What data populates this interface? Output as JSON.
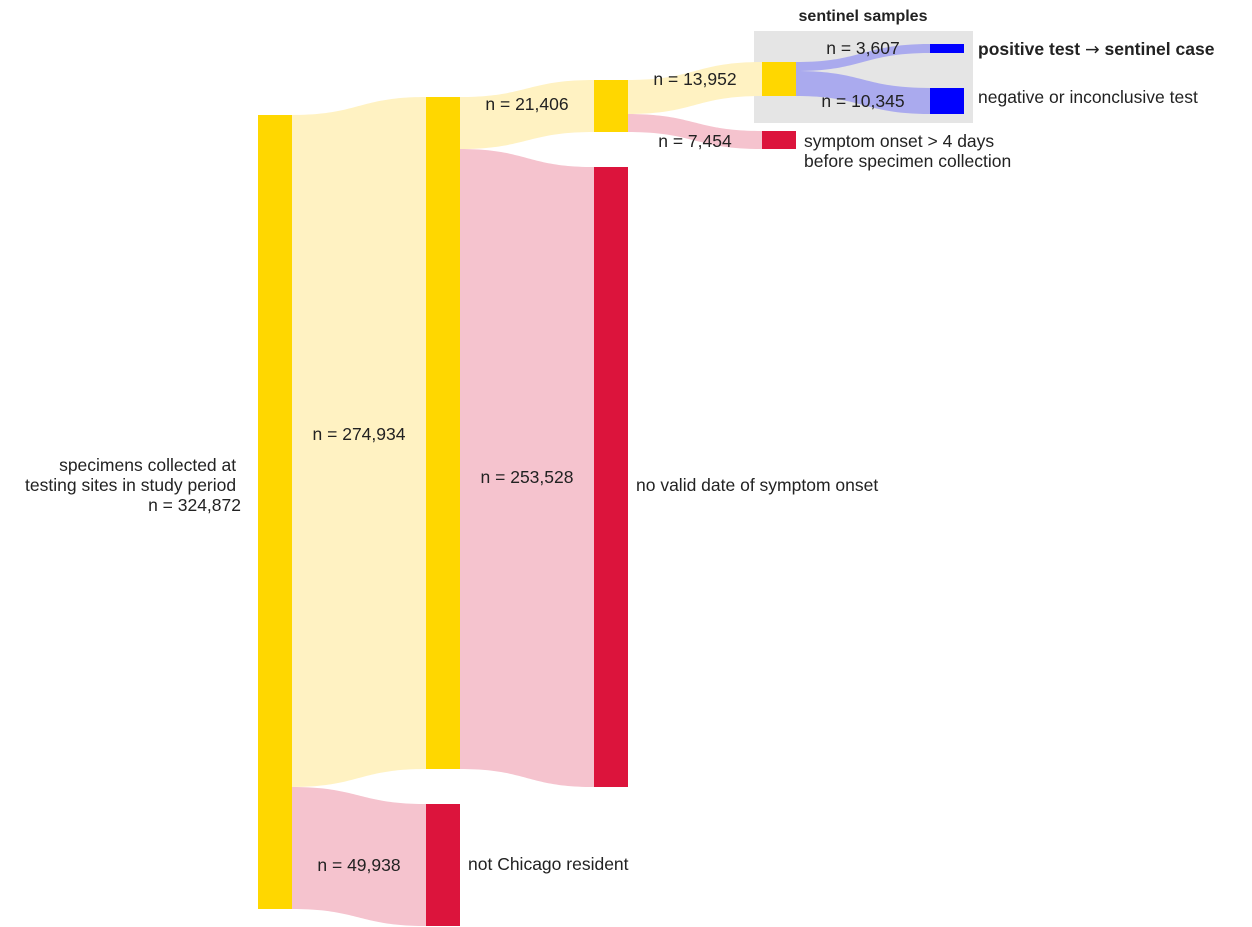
{
  "diagram": {
    "type": "sankey",
    "sentinel_group_title": "sentinel samples",
    "colors": {
      "node_yellow": "#ffd700",
      "node_red": "#dc143c",
      "node_blue": "#0000ff",
      "link_yellow": "#fff2c2",
      "link_pink": "#f5c3ce",
      "link_blue": "#aaaaee",
      "highlight_box": "#e5e5e5"
    },
    "nodes": {
      "source": {
        "label_lines": [
          "specimens collected at",
          "testing sites in study period",
          "n = 324,872"
        ]
      },
      "not_chicago": {
        "label": "not Chicago resident"
      },
      "no_onset": {
        "label": "no valid date of symptom onset"
      },
      "late_onset": {
        "label_lines": [
          "symptom onset > 4 days",
          "before specimen collection"
        ]
      },
      "positive": {
        "label_prefix": "positive test ",
        "label_arrow": "→",
        "label_suffix": " sentinel case"
      },
      "negative": {
        "label": "negative or inconclusive test"
      }
    },
    "links": {
      "chicago": "n = 274,934",
      "not_chicago": "n = 49,938",
      "valid_onset": "n = 21,406",
      "no_onset": "n = 253,528",
      "within_4_days": "n = 13,952",
      "late_onset": "n = 7,454",
      "positive": "n = 3,607",
      "negative": "n = 10,345"
    }
  }
}
